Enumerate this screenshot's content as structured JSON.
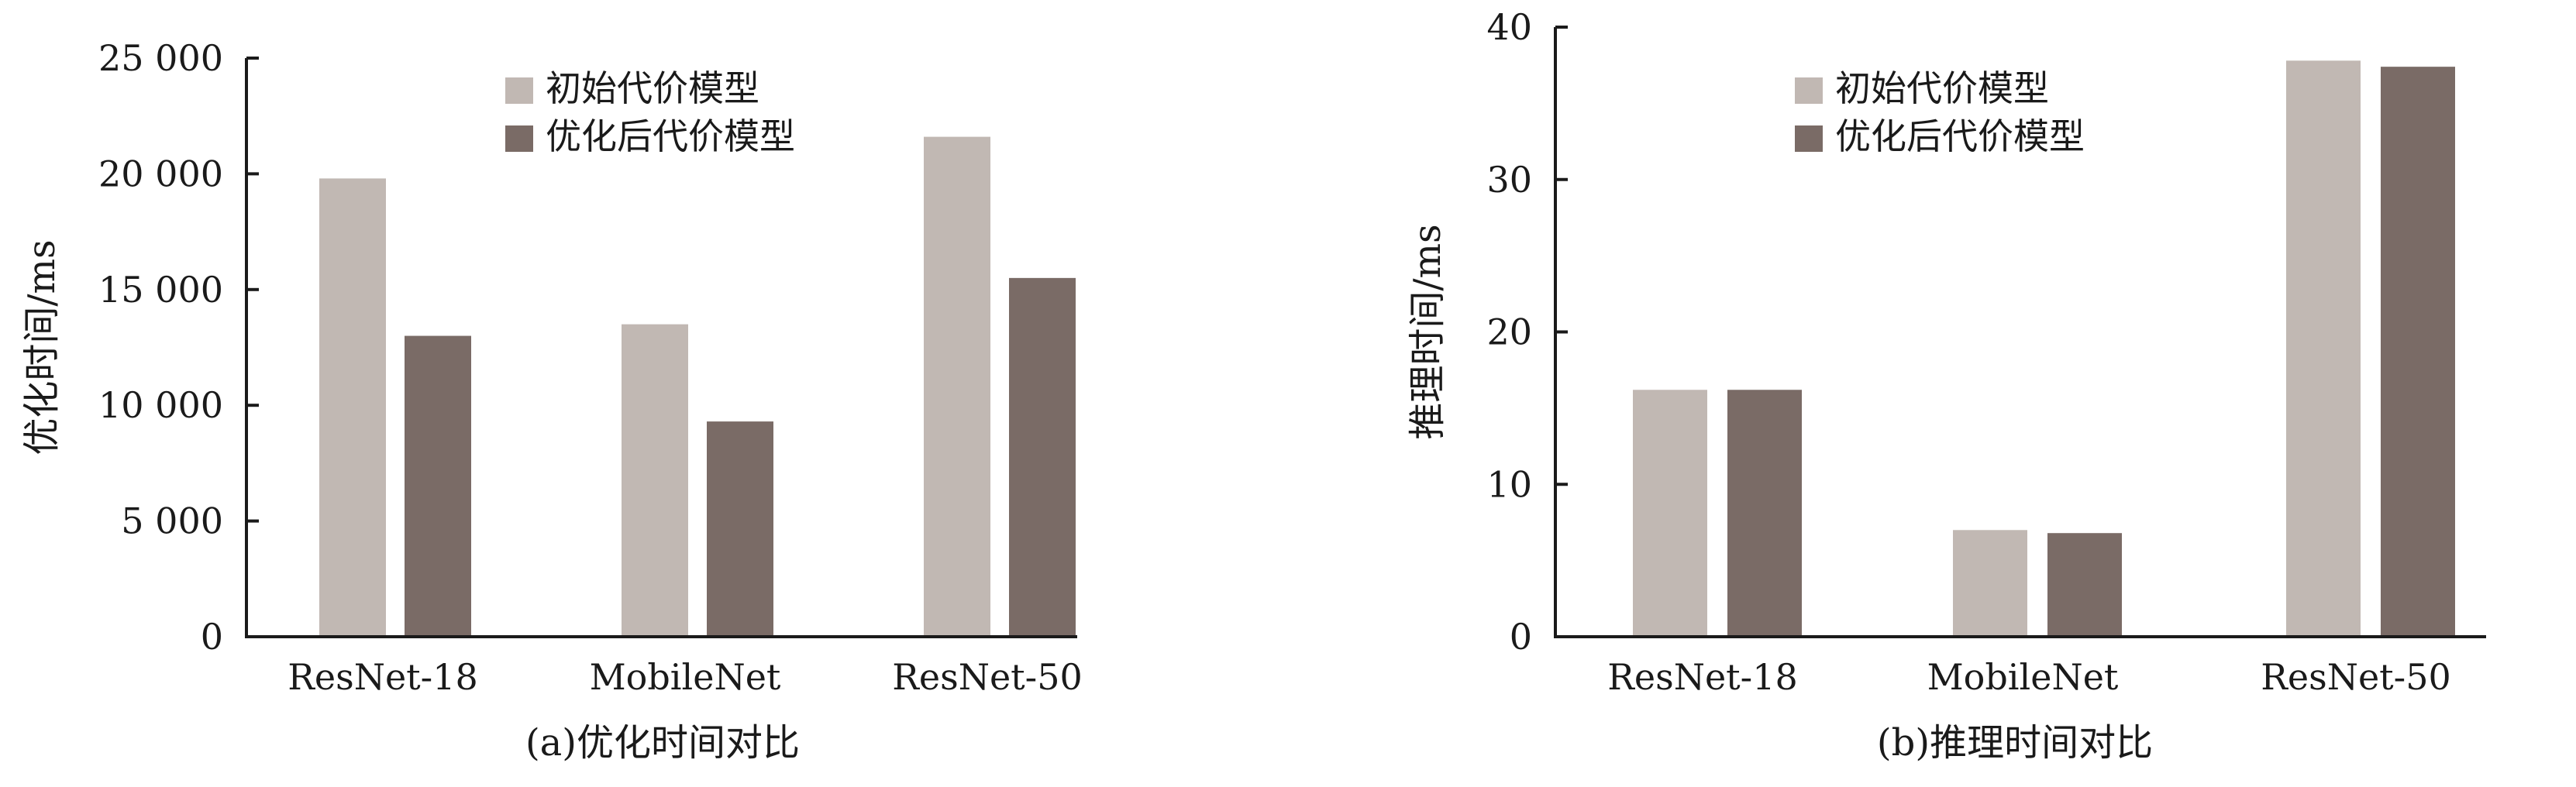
{
  "chart_data": [
    {
      "type": "bar",
      "title": "",
      "caption": "(a)优化时间对比",
      "xlabel": "",
      "ylabel": "优化时间/ms",
      "categories": [
        "ResNet-18",
        "MobileNet",
        "ResNet-50"
      ],
      "ylim": [
        0,
        25000
      ],
      "yticks": [
        0,
        5000,
        10000,
        15000,
        20000,
        25000
      ],
      "ytick_labels": [
        "0",
        "5 000",
        "10 000",
        "15 000",
        "20 000",
        "25 000"
      ],
      "series": [
        {
          "name": "初始代价模型",
          "color": "#c1b8b3",
          "values": [
            19800,
            13500,
            21600
          ]
        },
        {
          "name": "优化后代价模型",
          "color": "#7a6b66",
          "values": [
            13000,
            9300,
            15500
          ]
        }
      ],
      "legend": "top-center",
      "grid": false
    },
    {
      "type": "bar",
      "title": "",
      "caption": "(b)推理时间对比",
      "xlabel": "",
      "ylabel": "推理时间/ms",
      "categories": [
        "ResNet-18",
        "MobileNet",
        "ResNet-50"
      ],
      "ylim": [
        0,
        40
      ],
      "yticks": [
        0,
        10,
        20,
        30,
        40
      ],
      "ytick_labels": [
        "0",
        "10",
        "20",
        "30",
        "40"
      ],
      "series": [
        {
          "name": "初始代价模型",
          "color": "#c1b8b3",
          "values": [
            16.2,
            7.0,
            37.8
          ]
        },
        {
          "name": "优化后代价模型",
          "color": "#7a6b66",
          "values": [
            16.2,
            6.8,
            37.4
          ]
        }
      ],
      "legend": "top-center",
      "grid": false
    }
  ]
}
